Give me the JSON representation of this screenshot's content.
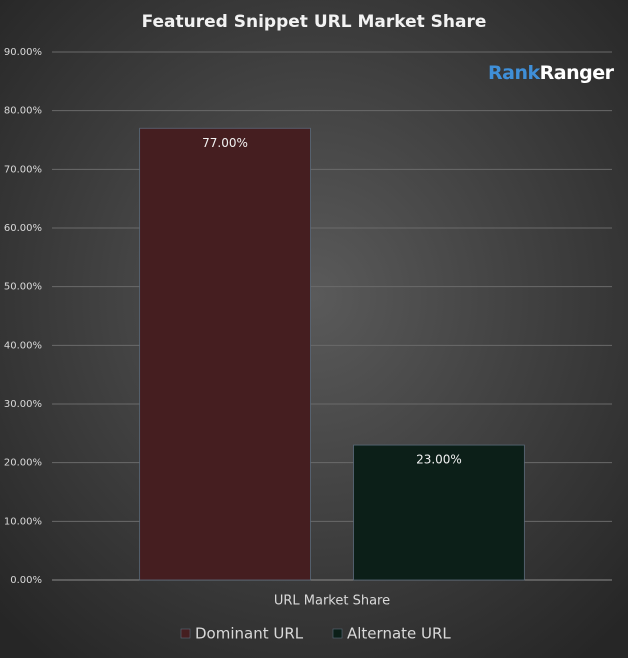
{
  "chart_data": {
    "type": "bar",
    "title": "Featured Snippet URL Market Share",
    "logo": [
      "Rank",
      "Ranger"
    ],
    "categories": [
      "URL Market Share"
    ],
    "series": [
      {
        "name": "Dominant URL",
        "color": "#451e20",
        "values": [
          77
        ],
        "value_labels": [
          "77.00%"
        ]
      },
      {
        "name": "Alternate URL",
        "color": "#0c1f18",
        "values": [
          23
        ],
        "value_labels": [
          "23.00%"
        ]
      }
    ],
    "ylim": [
      0,
      90
    ],
    "yticks": [
      {
        "value": 0,
        "label": "0.00%"
      },
      {
        "value": 10,
        "label": "10.00%"
      },
      {
        "value": 20,
        "label": "20.00%"
      },
      {
        "value": 30,
        "label": "30.00%"
      },
      {
        "value": 40,
        "label": "40.00%"
      },
      {
        "value": 50,
        "label": "50.00%"
      },
      {
        "value": 60,
        "label": "60.00%"
      },
      {
        "value": 70,
        "label": "70.00%"
      },
      {
        "value": 80,
        "label": "80.00%"
      },
      {
        "value": 90,
        "label": "90.00%"
      }
    ],
    "grid": true,
    "legend": "bottom"
  }
}
